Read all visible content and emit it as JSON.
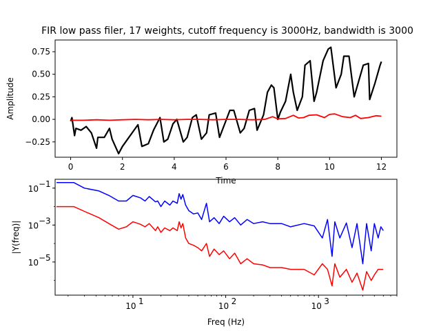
{
  "chart_data": [
    {
      "type": "line",
      "title": "FIR low pass filer, 17 weights, cutoff frequency is 3000Hz,  bandwidth is 3000",
      "xlabel": "Time",
      "ylabel": "Amplitude",
      "xlim": [
        -0.6,
        12.6
      ],
      "ylim": [
        -0.42,
        0.88
      ],
      "xticks": [
        0,
        2,
        4,
        6,
        8,
        10,
        12
      ],
      "yticks": [
        -0.25,
        0.0,
        0.25,
        0.5,
        0.75
      ],
      "ytick_labels": [
        "−0.25",
        "0.00",
        "0.25",
        "0.50",
        "0.75"
      ],
      "grid": false,
      "series": [
        {
          "color": "#000000",
          "x": [
            0,
            0.05,
            0.15,
            0.2,
            0.4,
            0.6,
            0.8,
            1.0,
            1.05,
            1.3,
            1.5,
            1.6,
            1.85,
            2.0,
            2.2,
            2.4,
            2.6,
            2.75,
            3.0,
            3.2,
            3.45,
            3.6,
            3.75,
            3.95,
            4.1,
            4.35,
            4.5,
            4.7,
            4.85,
            5.05,
            5.25,
            5.35,
            5.6,
            5.75,
            5.95,
            6.15,
            6.3,
            6.55,
            6.7,
            6.9,
            7.1,
            7.2,
            7.45,
            7.6,
            7.75,
            7.85,
            8.0,
            8.1,
            8.3,
            8.5,
            8.6,
            8.75,
            8.95,
            9.05,
            9.25,
            9.4,
            9.5,
            9.75,
            9.95,
            10.05,
            10.25,
            10.45,
            10.55,
            10.75,
            10.95,
            11.0,
            11.3,
            11.5,
            11.55,
            11.75,
            11.95,
            12.0
          ],
          "y": [
            -0.02,
            0.02,
            -0.18,
            -0.1,
            -0.12,
            -0.08,
            -0.15,
            -0.32,
            -0.2,
            -0.2,
            -0.1,
            -0.22,
            -0.38,
            -0.3,
            -0.22,
            -0.14,
            -0.06,
            -0.3,
            -0.27,
            -0.12,
            0.02,
            -0.25,
            -0.22,
            -0.05,
            0.0,
            -0.25,
            -0.2,
            0.02,
            0.05,
            -0.22,
            -0.15,
            0.05,
            0.07,
            -0.2,
            -0.05,
            0.1,
            0.1,
            -0.15,
            -0.1,
            0.1,
            0.12,
            -0.12,
            0.05,
            0.3,
            0.38,
            0.35,
            0.0,
            0.08,
            0.2,
            0.5,
            0.3,
            0.1,
            0.25,
            0.6,
            0.65,
            0.2,
            0.3,
            0.65,
            0.78,
            0.8,
            0.35,
            0.5,
            0.7,
            0.7,
            0.25,
            0.3,
            0.6,
            0.62,
            0.22,
            0.4,
            0.6,
            0.64
          ]
        },
        {
          "color": "#ff0000",
          "x": [
            0,
            0.5,
            1.0,
            1.5,
            2.0,
            2.5,
            3.0,
            3.5,
            4.0,
            4.5,
            5.0,
            5.5,
            6.0,
            6.5,
            7.0,
            7.5,
            7.8,
            8.0,
            8.3,
            8.6,
            8.8,
            9.0,
            9.2,
            9.5,
            9.8,
            10.0,
            10.2,
            10.5,
            10.8,
            11.0,
            11.2,
            11.5,
            11.8,
            12.0
          ],
          "y": [
            -0.01,
            -0.01,
            -0.005,
            -0.01,
            -0.005,
            0.0,
            -0.005,
            0.0,
            -0.005,
            0.0,
            0.0,
            -0.005,
            0.0,
            0.0,
            -0.005,
            0.0,
            0.03,
            0.005,
            0.01,
            0.045,
            0.015,
            0.02,
            0.045,
            0.05,
            0.02,
            0.055,
            0.06,
            0.03,
            0.02,
            0.045,
            0.01,
            0.02,
            0.04,
            0.035
          ]
        }
      ]
    },
    {
      "type": "line",
      "xlabel": "Freq (Hz)",
      "ylabel": "|Y(freq)|",
      "xscale": "log",
      "yscale": "log",
      "xlim": [
        1.45,
        7000
      ],
      "ylim": [
        1.6e-07,
        0.3
      ],
      "xticks": [
        10,
        100,
        1000
      ],
      "xtick_labels": [
        "10",
        "10",
        "10"
      ],
      "xtick_exps": [
        "1",
        "2",
        "3"
      ],
      "yticks": [
        1e-05,
        0.001,
        0.1
      ],
      "ytick_labels": [
        "10",
        "10",
        "10"
      ],
      "ytick_exps": [
        "−5",
        "−3",
        "−1"
      ],
      "grid": false,
      "series": [
        {
          "color": "#0000ff",
          "x": [
            1.5,
            2.3,
            3.0,
            4.3,
            5.5,
            7.0,
            8.5,
            10.0,
            12.0,
            13.5,
            15.0,
            17.5,
            18.5,
            20.0,
            22.0,
            25.0,
            27.0,
            30.0,
            31.5,
            33.0,
            34.5,
            37.0,
            40.0,
            45.0,
            50.0,
            55.0,
            62.0,
            67.0,
            75.0,
            85.0,
            95.0,
            110.0,
            125.0,
            145.0,
            170.0,
            200.0,
            250.0,
            300.0,
            400.0,
            500.0,
            700.0,
            900.0,
            1100.0,
            1250.0,
            1400.0,
            1500.0,
            1700.0,
            2000.0,
            2300.0,
            2600.0,
            3000.0,
            3300.0,
            3700.0,
            4000.0,
            4400.0,
            4700.0,
            5000.0
          ],
          "y": [
            0.2,
            0.2,
            0.1,
            0.07,
            0.04,
            0.02,
            0.02,
            0.04,
            0.03,
            0.02,
            0.035,
            0.018,
            0.02,
            0.01,
            0.02,
            0.012,
            0.02,
            0.015,
            0.05,
            0.025,
            0.045,
            0.012,
            0.006,
            0.004,
            0.0045,
            0.002,
            0.015,
            0.0015,
            0.0025,
            0.0012,
            0.003,
            0.0015,
            0.0025,
            0.001,
            0.002,
            0.0012,
            0.0015,
            0.0012,
            0.0012,
            0.0008,
            0.0012,
            0.0009,
            0.0002,
            0.002,
            2e-05,
            0.0015,
            0.0002,
            0.0013,
            6e-05,
            0.0012,
            8e-06,
            0.0012,
            4e-05,
            0.0012,
            0.0002,
            0.0008,
            0.0005
          ]
        },
        {
          "color": "#ff0000",
          "x": [
            1.5,
            2.3,
            3.0,
            4.3,
            5.5,
            7.0,
            8.5,
            10.0,
            12.0,
            13.5,
            15.0,
            17.5,
            18.5,
            20.0,
            22.0,
            25.0,
            27.0,
            30.0,
            31.5,
            33.0,
            34.5,
            37.0,
            40.0,
            45.0,
            50.0,
            55.0,
            62.0,
            67.0,
            75.0,
            85.0,
            95.0,
            110.0,
            125.0,
            145.0,
            170.0,
            200.0,
            250.0,
            300.0,
            400.0,
            500.0,
            700.0,
            900.0,
            1100.0,
            1250.0,
            1400.0,
            1500.0,
            1700.0,
            2000.0,
            2300.0,
            2600.0,
            3000.0,
            3300.0,
            3700.0,
            4000.0,
            4400.0,
            4700.0,
            5000.0
          ],
          "y": [
            0.01,
            0.01,
            0.0055,
            0.0025,
            0.0012,
            0.0006,
            0.0008,
            0.0015,
            0.0011,
            0.0008,
            0.0012,
            0.0005,
            0.0008,
            0.0004,
            0.0007,
            0.0005,
            0.0007,
            0.0005,
            0.0015,
            0.0007,
            0.0012,
            0.0002,
            0.0001,
            8e-05,
            6e-05,
            4e-05,
            0.0001,
            2e-05,
            5e-05,
            2.5e-05,
            4e-05,
            1.5e-05,
            3e-05,
            8e-06,
            1.5e-05,
            8e-06,
            7e-06,
            5e-06,
            5e-06,
            4e-06,
            4e-06,
            2e-06,
            8e-06,
            4e-06,
            5e-07,
            8e-06,
            1.5e-06,
            4e-06,
            8e-07,
            2.5e-06,
            3e-07,
            3e-06,
            1e-06,
            2e-06,
            4e-06,
            4e-06,
            4e-06
          ]
        }
      ]
    }
  ]
}
